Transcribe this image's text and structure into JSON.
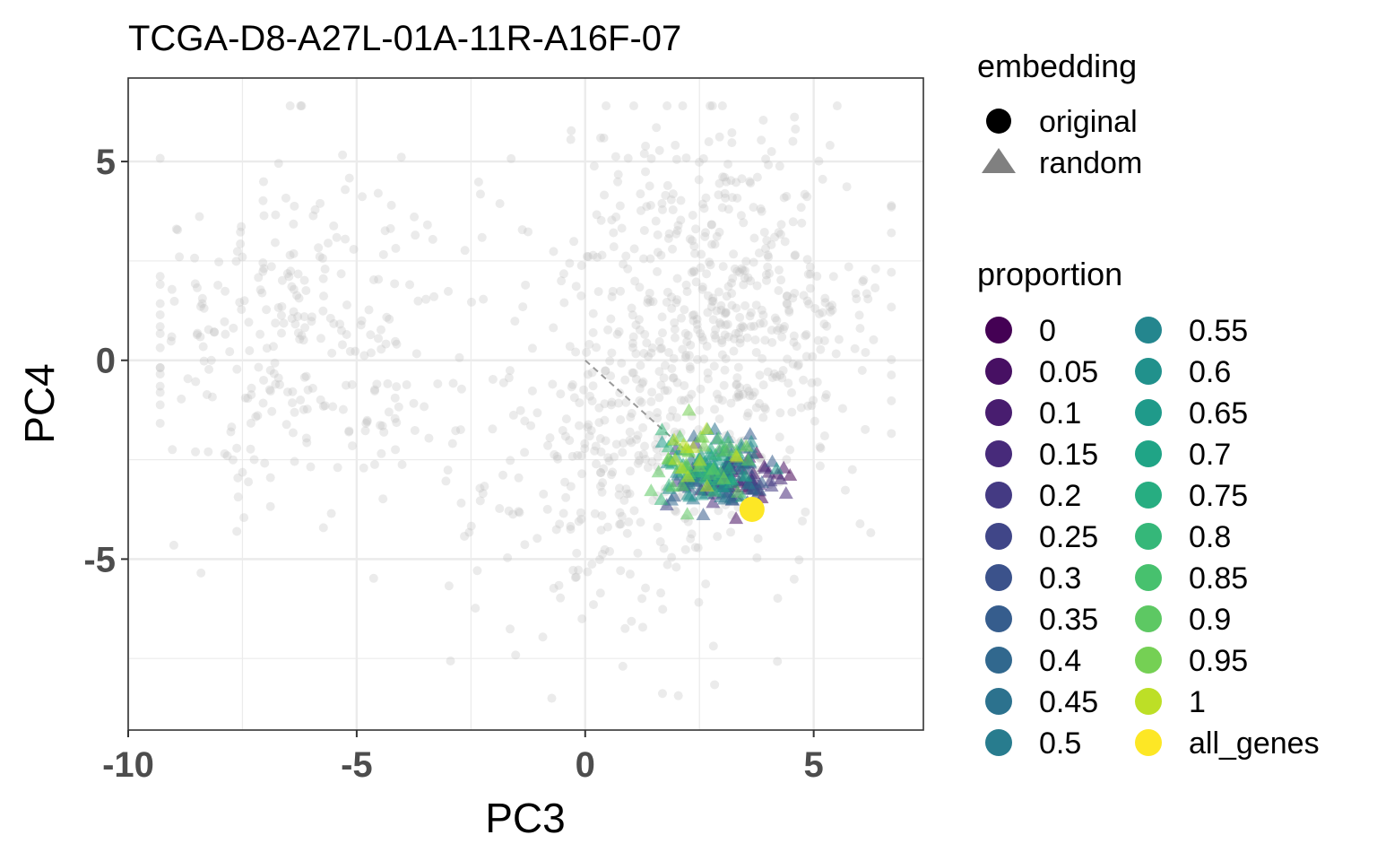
{
  "chart_data": {
    "type": "scatter",
    "title": "TCGA-D8-A27L-01A-11R-A16F-07",
    "xlabel": "PC3",
    "ylabel": "PC4",
    "xlim": [
      -10,
      7.4
    ],
    "ylim": [
      -9.3,
      7.1
    ],
    "x_ticks": [
      {
        "value": -10,
        "label": "-10"
      },
      {
        "value": -5,
        "label": "-5"
      },
      {
        "value": 0,
        "label": "0"
      },
      {
        "value": 5,
        "label": "5"
      }
    ],
    "y_ticks": [
      {
        "value": 5,
        "label": "5"
      },
      {
        "value": 0,
        "label": "0"
      },
      {
        "value": -5,
        "label": "-5"
      }
    ],
    "grid": true,
    "legend_position": "right",
    "background_points": {
      "color": "#bebebe",
      "opacity": 0.3,
      "count": 1100,
      "clusters": [
        {
          "cx": -6.2,
          "cy": 0.6,
          "sx": 1.9,
          "sy": 2.3,
          "n": 300
        },
        {
          "cx": 3.0,
          "cy": 1.6,
          "sx": 1.8,
          "sy": 2.2,
          "n": 520
        },
        {
          "cx": 1.0,
          "cy": -3.0,
          "sx": 1.8,
          "sy": 2.0,
          "n": 280
        }
      ]
    },
    "reference_line": {
      "from": [
        0,
        0
      ],
      "to": [
        3.65,
        -3.75
      ],
      "color": "#999999",
      "style": "dashed"
    },
    "random_cloud": {
      "cx": 2.9,
      "cy": -2.8,
      "sx": 0.55,
      "sy": 0.42,
      "n_per_level": 12
    },
    "original_point": {
      "x": 3.65,
      "y": -3.75,
      "proportion": "all_genes"
    },
    "legend": {
      "embedding": {
        "title": "embedding",
        "items": [
          {
            "label": "original",
            "shape": "circle",
            "color": "#000000"
          },
          {
            "label": "random",
            "shape": "triangle",
            "color": "#808080"
          }
        ]
      },
      "proportion": {
        "title": "proportion",
        "levels": [
          {
            "label": "0",
            "color": "#440154"
          },
          {
            "label": "0.05",
            "color": "#471063"
          },
          {
            "label": "0.1",
            "color": "#481d6f"
          },
          {
            "label": "0.15",
            "color": "#472a7a"
          },
          {
            "label": "0.2",
            "color": "#443a83"
          },
          {
            "label": "0.25",
            "color": "#404688"
          },
          {
            "label": "0.3",
            "color": "#3b528b"
          },
          {
            "label": "0.35",
            "color": "#365d8d"
          },
          {
            "label": "0.4",
            "color": "#31688e"
          },
          {
            "label": "0.45",
            "color": "#2c728e"
          },
          {
            "label": "0.5",
            "color": "#287c8e"
          },
          {
            "label": "0.55",
            "color": "#24868e"
          },
          {
            "label": "0.6",
            "color": "#21918c"
          },
          {
            "label": "0.65",
            "color": "#1f9a8a"
          },
          {
            "label": "0.7",
            "color": "#20a486"
          },
          {
            "label": "0.75",
            "color": "#27ad81"
          },
          {
            "label": "0.8",
            "color": "#35b779"
          },
          {
            "label": "0.85",
            "color": "#47c16e"
          },
          {
            "label": "0.9",
            "color": "#5dc863"
          },
          {
            "label": "0.95",
            "color": "#75d054"
          },
          {
            "label": "1",
            "color": "#bddf26"
          },
          {
            "label": "all_genes",
            "color": "#fde725"
          }
        ]
      }
    }
  }
}
